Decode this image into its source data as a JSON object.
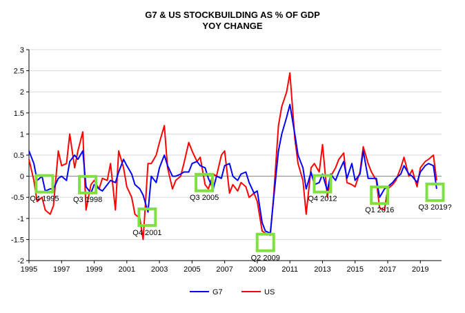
{
  "chart_data": {
    "type": "line",
    "title": "G7 & US STOCKBUILDING AS % OF GDP",
    "subtitle": "YOY CHANGE",
    "xlabel": "",
    "ylabel": "",
    "xlim": [
      1995,
      2020.3
    ],
    "ylim": [
      -2,
      3
    ],
    "x_ticks": [
      1995,
      1997,
      1999,
      2001,
      2003,
      2005,
      2007,
      2009,
      2011,
      2013,
      2015,
      2017,
      2019
    ],
    "y_ticks": [
      3,
      2.5,
      2,
      1.5,
      1,
      0.5,
      0,
      -0.5,
      -1,
      -1.5,
      -2
    ],
    "grid": "horizontal",
    "legend_position": "bottom",
    "series": [
      {
        "name": "G7",
        "color": "#0000ff",
        "points": [
          [
            1995.0,
            0.6
          ],
          [
            1995.3,
            0.3
          ],
          [
            1995.5,
            -0.1
          ],
          [
            1995.8,
            0.0
          ],
          [
            1996.0,
            -0.35
          ],
          [
            1996.3,
            -0.3
          ],
          [
            1996.5,
            -0.3
          ],
          [
            1996.8,
            -0.05
          ],
          [
            1997.0,
            0.0
          ],
          [
            1997.3,
            -0.1
          ],
          [
            1997.5,
            0.35
          ],
          [
            1997.8,
            0.5
          ],
          [
            1998.0,
            0.4
          ],
          [
            1998.3,
            0.6
          ],
          [
            1998.5,
            -0.25
          ],
          [
            1998.8,
            -0.4
          ],
          [
            1999.0,
            -0.2
          ],
          [
            1999.3,
            -0.3
          ],
          [
            1999.5,
            -0.35
          ],
          [
            1999.8,
            -0.2
          ],
          [
            2000.0,
            -0.1
          ],
          [
            2000.3,
            -0.15
          ],
          [
            2000.5,
            0.1
          ],
          [
            2000.8,
            0.4
          ],
          [
            2001.0,
            0.25
          ],
          [
            2001.3,
            0.05
          ],
          [
            2001.5,
            -0.2
          ],
          [
            2001.8,
            -0.3
          ],
          [
            2002.0,
            -0.45
          ],
          [
            2002.3,
            -0.85
          ],
          [
            2002.5,
            0.0
          ],
          [
            2002.8,
            -0.15
          ],
          [
            2003.0,
            0.2
          ],
          [
            2003.3,
            0.5
          ],
          [
            2003.5,
            0.25
          ],
          [
            2003.8,
            0.0
          ],
          [
            2004.0,
            0.0
          ],
          [
            2004.3,
            0.05
          ],
          [
            2004.5,
            0.1
          ],
          [
            2004.8,
            0.1
          ],
          [
            2005.0,
            0.3
          ],
          [
            2005.3,
            0.35
          ],
          [
            2005.5,
            0.25
          ],
          [
            2005.8,
            0.2
          ],
          [
            2006.0,
            -0.05
          ],
          [
            2006.3,
            -0.3
          ],
          [
            2006.5,
            0.0
          ],
          [
            2006.8,
            -0.05
          ],
          [
            2007.0,
            0.25
          ],
          [
            2007.3,
            0.3
          ],
          [
            2007.5,
            0.0
          ],
          [
            2007.8,
            -0.1
          ],
          [
            2008.0,
            0.05
          ],
          [
            2008.3,
            0.1
          ],
          [
            2008.5,
            -0.15
          ],
          [
            2008.8,
            -0.4
          ],
          [
            2009.0,
            -0.35
          ],
          [
            2009.3,
            -1.1
          ],
          [
            2009.5,
            -1.3
          ],
          [
            2009.8,
            -1.35
          ],
          [
            2010.0,
            -0.55
          ],
          [
            2010.3,
            0.6
          ],
          [
            2010.5,
            1.0
          ],
          [
            2010.8,
            1.4
          ],
          [
            2011.0,
            1.7
          ],
          [
            2011.3,
            1.0
          ],
          [
            2011.5,
            0.5
          ],
          [
            2011.8,
            0.2
          ],
          [
            2012.0,
            -0.3
          ],
          [
            2012.3,
            0.1
          ],
          [
            2012.5,
            -0.2
          ],
          [
            2012.8,
            -0.15
          ],
          [
            2013.0,
            0.05
          ],
          [
            2013.3,
            -0.35
          ],
          [
            2013.5,
            0.05
          ],
          [
            2013.8,
            -0.1
          ],
          [
            2014.0,
            0.1
          ],
          [
            2014.3,
            0.35
          ],
          [
            2014.5,
            -0.05
          ],
          [
            2014.8,
            0.3
          ],
          [
            2015.0,
            -0.1
          ],
          [
            2015.3,
            0.05
          ],
          [
            2015.5,
            0.6
          ],
          [
            2015.8,
            -0.05
          ],
          [
            2016.0,
            -0.05
          ],
          [
            2016.3,
            -0.05
          ],
          [
            2016.5,
            -0.5
          ],
          [
            2016.8,
            -0.3
          ],
          [
            2017.0,
            -0.25
          ],
          [
            2017.3,
            -0.15
          ],
          [
            2017.5,
            -0.05
          ],
          [
            2017.8,
            0.05
          ],
          [
            2018.0,
            0.25
          ],
          [
            2018.3,
            0.05
          ],
          [
            2018.5,
            0.0
          ],
          [
            2018.8,
            -0.15
          ],
          [
            2019.0,
            0.1
          ],
          [
            2019.3,
            0.25
          ],
          [
            2019.5,
            0.3
          ],
          [
            2019.8,
            0.25
          ],
          [
            2020.0,
            -0.3
          ]
        ]
      },
      {
        "name": "US",
        "color": "#ff0000",
        "points": [
          [
            1995.0,
            0.4
          ],
          [
            1995.3,
            -0.1
          ],
          [
            1995.5,
            -0.6
          ],
          [
            1995.8,
            -0.5
          ],
          [
            1996.0,
            -0.8
          ],
          [
            1996.3,
            -0.9
          ],
          [
            1996.5,
            -0.7
          ],
          [
            1996.8,
            0.6
          ],
          [
            1997.0,
            0.25
          ],
          [
            1997.3,
            0.3
          ],
          [
            1997.5,
            1.0
          ],
          [
            1997.8,
            0.2
          ],
          [
            1998.0,
            0.6
          ],
          [
            1998.3,
            1.05
          ],
          [
            1998.5,
            -0.8
          ],
          [
            1998.8,
            -0.2
          ],
          [
            1999.0,
            -0.1
          ],
          [
            1999.3,
            -0.3
          ],
          [
            1999.5,
            -0.05
          ],
          [
            1999.8,
            -0.1
          ],
          [
            2000.0,
            0.3
          ],
          [
            2000.3,
            -0.8
          ],
          [
            2000.5,
            0.6
          ],
          [
            2000.8,
            0.2
          ],
          [
            2001.0,
            -0.25
          ],
          [
            2001.3,
            -0.5
          ],
          [
            2001.5,
            -0.9
          ],
          [
            2001.8,
            -1.0
          ],
          [
            2002.0,
            -1.5
          ],
          [
            2002.3,
            0.3
          ],
          [
            2002.5,
            0.3
          ],
          [
            2002.8,
            0.5
          ],
          [
            2003.0,
            0.8
          ],
          [
            2003.3,
            1.2
          ],
          [
            2003.5,
            0.2
          ],
          [
            2003.8,
            -0.3
          ],
          [
            2004.0,
            -0.1
          ],
          [
            2004.3,
            0.0
          ],
          [
            2004.5,
            0.3
          ],
          [
            2004.8,
            0.8
          ],
          [
            2005.0,
            0.6
          ],
          [
            2005.3,
            0.35
          ],
          [
            2005.5,
            0.45
          ],
          [
            2005.8,
            -0.2
          ],
          [
            2006.0,
            -0.3
          ],
          [
            2006.3,
            0.05
          ],
          [
            2006.5,
            0.0
          ],
          [
            2006.8,
            0.5
          ],
          [
            2007.0,
            0.6
          ],
          [
            2007.3,
            -0.4
          ],
          [
            2007.5,
            -0.2
          ],
          [
            2007.8,
            -0.35
          ],
          [
            2008.0,
            -0.15
          ],
          [
            2008.3,
            -0.25
          ],
          [
            2008.5,
            -0.5
          ],
          [
            2008.8,
            -0.4
          ],
          [
            2009.0,
            -0.6
          ],
          [
            2009.3,
            -1.3
          ],
          [
            2009.5,
            -1.35
          ],
          [
            2009.8,
            -1.4
          ],
          [
            2010.0,
            -0.5
          ],
          [
            2010.3,
            1.2
          ],
          [
            2010.5,
            1.65
          ],
          [
            2010.8,
            2.0
          ],
          [
            2011.0,
            2.45
          ],
          [
            2011.3,
            0.9
          ],
          [
            2011.5,
            0.3
          ],
          [
            2011.8,
            -0.1
          ],
          [
            2012.0,
            -0.9
          ],
          [
            2012.3,
            0.2
          ],
          [
            2012.5,
            0.3
          ],
          [
            2012.8,
            0.1
          ],
          [
            2013.0,
            0.75
          ],
          [
            2013.3,
            -0.5
          ],
          [
            2013.5,
            0.0
          ],
          [
            2013.8,
            0.2
          ],
          [
            2014.0,
            0.4
          ],
          [
            2014.3,
            0.55
          ],
          [
            2014.5,
            -0.15
          ],
          [
            2014.8,
            -0.2
          ],
          [
            2015.0,
            -0.25
          ],
          [
            2015.3,
            0.1
          ],
          [
            2015.5,
            0.7
          ],
          [
            2015.8,
            0.3
          ],
          [
            2016.0,
            0.1
          ],
          [
            2016.3,
            -0.1
          ],
          [
            2016.5,
            -0.75
          ],
          [
            2016.8,
            -0.8
          ],
          [
            2017.0,
            -0.3
          ],
          [
            2017.3,
            -0.2
          ],
          [
            2017.5,
            -0.1
          ],
          [
            2017.8,
            0.2
          ],
          [
            2018.0,
            0.45
          ],
          [
            2018.3,
            0.0
          ],
          [
            2018.5,
            0.15
          ],
          [
            2018.8,
            -0.25
          ],
          [
            2019.0,
            0.2
          ],
          [
            2019.3,
            0.35
          ],
          [
            2019.5,
            0.4
          ],
          [
            2019.8,
            0.5
          ],
          [
            2020.0,
            -0.1
          ]
        ]
      }
    ],
    "annotations": [
      {
        "label": "Q4 1995",
        "x": 1995.95,
        "y": -0.18
      },
      {
        "label": "Q3 1998",
        "x": 1998.6,
        "y": -0.2
      },
      {
        "label": "Q4 2001",
        "x": 2002.25,
        "y": -0.97
      },
      {
        "label": "Q3 2005",
        "x": 2005.75,
        "y": -0.15
      },
      {
        "label": "Q2 2009",
        "x": 2009.5,
        "y": -1.57
      },
      {
        "label": "Q4 2012",
        "x": 2013.0,
        "y": -0.18
      },
      {
        "label": "Q1 2016",
        "x": 2016.5,
        "y": -0.45
      },
      {
        "label": "Q3 2019?",
        "x": 2019.9,
        "y": -0.38
      }
    ],
    "annotation_box_color": "#80e040"
  }
}
